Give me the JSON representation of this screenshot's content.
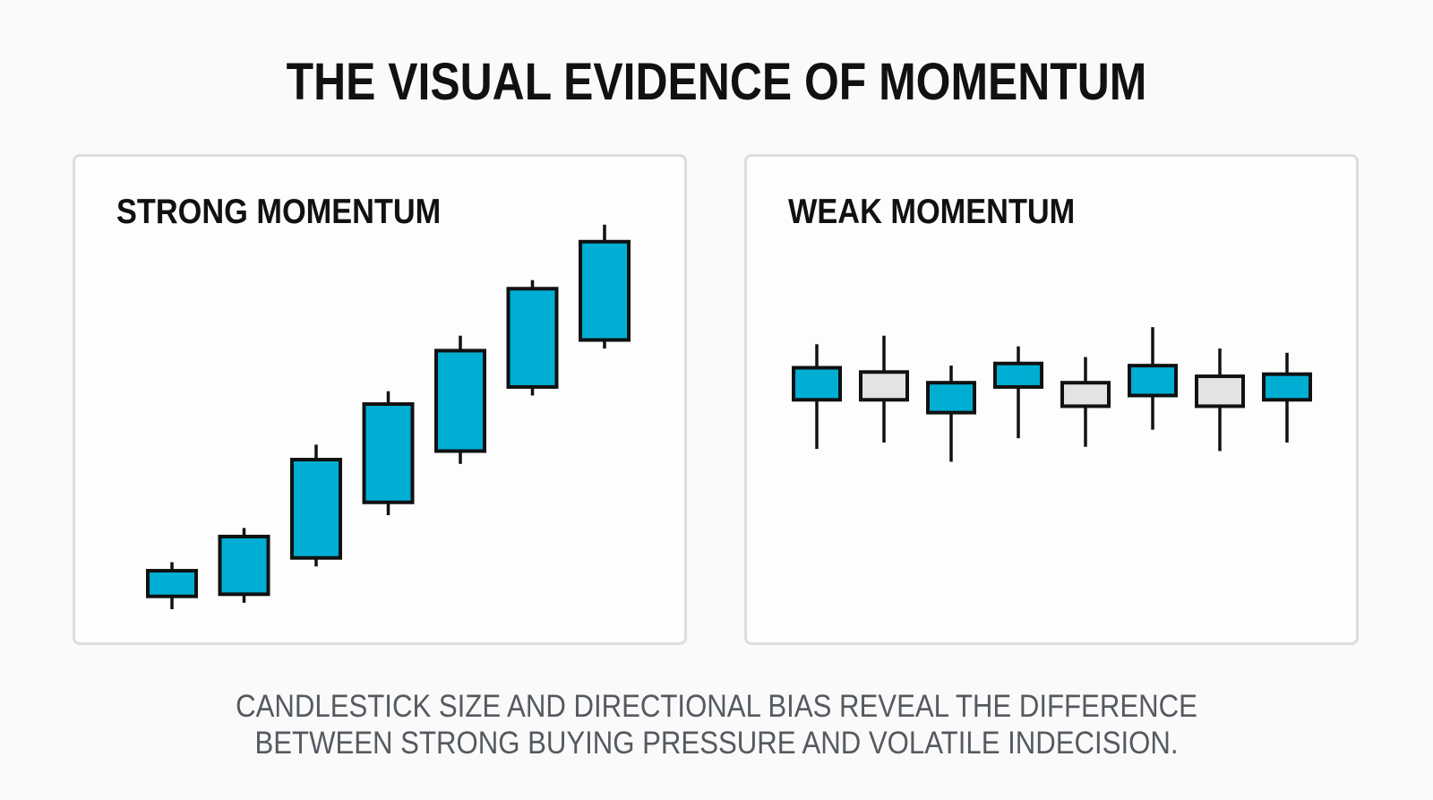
{
  "title": "THE VISUAL EVIDENCE OF MOMENTUM",
  "caption": {
    "line1": "CANDLESTICK SIZE AND DIRECTIONAL BIAS REVEAL THE DIFFERENCE",
    "line2": "BETWEEN STRONG BUYING PRESSURE AND VOLATILE INDECISION."
  },
  "colors": {
    "bullish": "#00aed4",
    "neutral": "#e2e3e5",
    "outline": "#111111",
    "panel_border": "#dddddd"
  },
  "chart_data": [
    {
      "type": "candlestick",
      "title": "STRONG MOMENTUM",
      "xlabel": "",
      "ylabel": "",
      "grid": false,
      "ylim": [
        0,
        100
      ],
      "candles": [
        {
          "open": 3,
          "close": 9,
          "high": 11,
          "low": 0,
          "color": "bullish"
        },
        {
          "open": 3.5,
          "close": 17,
          "high": 19,
          "low": 1.5,
          "color": "bullish"
        },
        {
          "open": 12,
          "close": 35,
          "high": 38.5,
          "low": 10,
          "color": "bullish"
        },
        {
          "open": 25,
          "close": 48,
          "high": 51,
          "low": 22,
          "color": "bullish"
        },
        {
          "open": 37,
          "close": 60.5,
          "high": 64,
          "low": 34,
          "color": "bullish"
        },
        {
          "open": 52,
          "close": 75,
          "high": 77,
          "low": 50,
          "color": "bullish"
        },
        {
          "open": 63,
          "close": 86,
          "high": 90,
          "low": 61,
          "color": "bullish"
        }
      ]
    },
    {
      "type": "candlestick",
      "title": "WEAK MOMENTUM",
      "xlabel": "",
      "ylabel": "",
      "grid": false,
      "ylim": [
        0,
        100
      ],
      "candles": [
        {
          "open": 49,
          "close": 56.5,
          "high": 62,
          "low": 37.5,
          "color": "bullish"
        },
        {
          "open": 49,
          "close": 55.5,
          "high": 64,
          "low": 39,
          "color": "neutral"
        },
        {
          "open": 46,
          "close": 53,
          "high": 57,
          "low": 34.5,
          "color": "bullish"
        },
        {
          "open": 52,
          "close": 57.5,
          "high": 61.5,
          "low": 40,
          "color": "neutral_stripe"
        },
        {
          "open": 47.5,
          "close": 53,
          "high": 59,
          "low": 38,
          "color": "neutral"
        },
        {
          "open": 50,
          "close": 57,
          "high": 66,
          "low": 42,
          "color": "bullish"
        },
        {
          "open": 47.5,
          "close": 54.5,
          "high": 61,
          "low": 37,
          "color": "neutral"
        },
        {
          "open": 49,
          "close": 55,
          "high": 60,
          "low": 39,
          "color": "bullish"
        }
      ]
    }
  ]
}
